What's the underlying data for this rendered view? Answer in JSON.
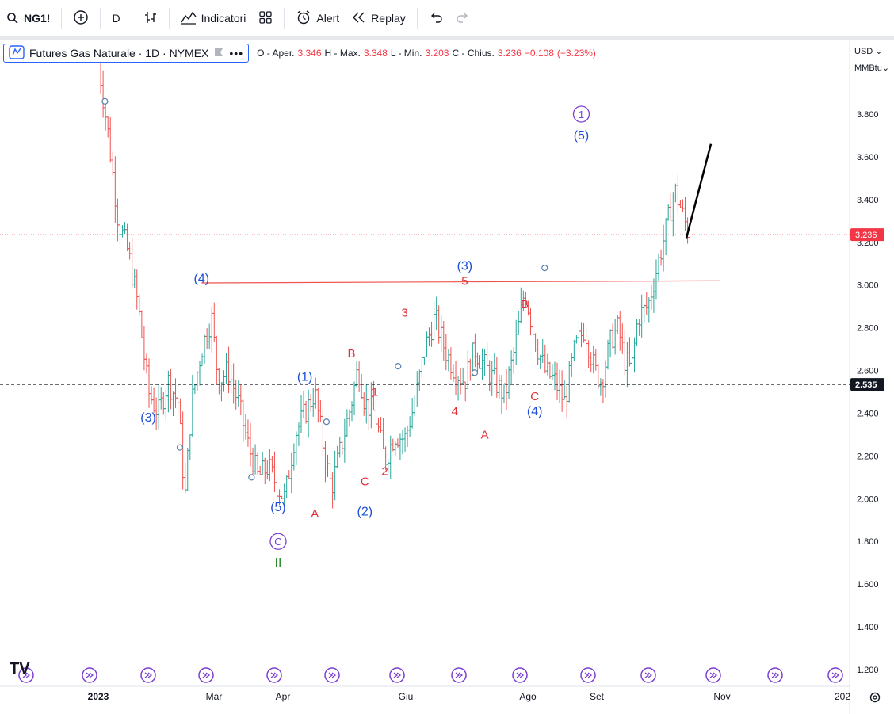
{
  "toolbar": {
    "symbol": "NG1!",
    "interval": "D",
    "indicators_label": "Indicatori",
    "alert_label": "Alert",
    "replay_label": "Replay"
  },
  "legend": {
    "title": "Futures Gas Naturale · 1D · NYMEX",
    "open_label": "O - Aper.",
    "open": "3.346",
    "high_label": "H - Max.",
    "high": "3.348",
    "low_label": "L - Min.",
    "low": "3.203",
    "close_label": "C - Chius.",
    "close": "3.236",
    "change": "−0.108",
    "change_pct": "(−3.23%)"
  },
  "price_axis": {
    "currency": "USD",
    "unit": "MMBtu"
  },
  "colors": {
    "up": "#26a69a",
    "down": "#ef5350",
    "wave_blue": "#1e4fd6",
    "wave_red": "#e0303a",
    "wave_purple": "#7b3fd1",
    "wave_green": "#2e8b2e",
    "hline_red": "#ef5350",
    "current_price_bg": "#f23645"
  },
  "chart_data": {
    "type": "ohlc",
    "ylim": [
      1.15,
      4.0
    ],
    "y_ticks": [
      "3.800",
      "3.600",
      "3.400",
      "3.200",
      "3.000",
      "2.800",
      "2.600",
      "2.400",
      "2.200",
      "2.000",
      "1.800",
      "1.600",
      "1.400",
      "1.200"
    ],
    "x_labels": [
      "2023",
      "Mar",
      "Apr",
      "Giu",
      "Ago",
      "Set",
      "Nov",
      "202"
    ],
    "last_price_label": "3.236",
    "dashed_level_label": "2.535",
    "last_price": 3.236,
    "dashed_level": 2.535,
    "resistance_level": 3.01,
    "path": [
      [
        0,
        4.05
      ],
      [
        6,
        3.7
      ],
      [
        12,
        3.3
      ],
      [
        18,
        3.15
      ],
      [
        24,
        2.9
      ],
      [
        30,
        2.5
      ],
      [
        36,
        2.4
      ],
      [
        42,
        2.55
      ],
      [
        48,
        2.45
      ],
      [
        52,
        2.0
      ],
      [
        56,
        2.45
      ],
      [
        62,
        2.7
      ],
      [
        68,
        2.85
      ],
      [
        72,
        2.55
      ],
      [
        78,
        2.6
      ],
      [
        84,
        2.45
      ],
      [
        90,
        2.25
      ],
      [
        96,
        2.1
      ],
      [
        102,
        2.15
      ],
      [
        108,
        2.05
      ],
      [
        112,
        2.0
      ],
      [
        118,
        2.3
      ],
      [
        124,
        2.4
      ],
      [
        130,
        2.5
      ],
      [
        136,
        2.2
      ],
      [
        140,
        2.05
      ],
      [
        146,
        2.25
      ],
      [
        152,
        2.45
      ],
      [
        156,
        2.62
      ],
      [
        160,
        2.45
      ],
      [
        166,
        2.4
      ],
      [
        172,
        2.18
      ],
      [
        178,
        2.3
      ],
      [
        184,
        2.28
      ],
      [
        190,
        2.45
      ],
      [
        196,
        2.7
      ],
      [
        202,
        2.85
      ],
      [
        208,
        2.7
      ],
      [
        214,
        2.6
      ],
      [
        220,
        2.55
      ],
      [
        226,
        2.7
      ],
      [
        232,
        2.62
      ],
      [
        238,
        2.55
      ],
      [
        244,
        2.48
      ],
      [
        250,
        2.7
      ],
      [
        256,
        2.98
      ],
      [
        262,
        2.75
      ],
      [
        268,
        2.6
      ],
      [
        274,
        2.55
      ],
      [
        280,
        2.45
      ],
      [
        286,
        2.7
      ],
      [
        292,
        2.8
      ],
      [
        298,
        2.6
      ],
      [
        302,
        2.55
      ],
      [
        308,
        2.75
      ],
      [
        312,
        2.8
      ],
      [
        316,
        2.65
      ],
      [
        320,
        2.6
      ],
      [
        324,
        2.85
      ],
      [
        330,
        2.9
      ],
      [
        336,
        3.1
      ],
      [
        342,
        3.3
      ],
      [
        346,
        3.45
      ],
      [
        350,
        3.35
      ],
      [
        354,
        3.25
      ]
    ],
    "annotations": [
      {
        "text": "(4)",
        "color": "blue",
        "date_idx": 62,
        "price": 3.03
      },
      {
        "text": "(3)",
        "color": "blue",
        "date_idx": 30,
        "price": 2.38
      },
      {
        "text": "(5)",
        "color": "blue",
        "date_idx": 108,
        "price": 1.96
      },
      {
        "text": "C",
        "color": "purple_circle",
        "date_idx": 108,
        "price": 1.8
      },
      {
        "text": "II",
        "color": "green",
        "date_idx": 108,
        "price": 1.7
      },
      {
        "text": "(1)",
        "color": "blue",
        "date_idx": 124,
        "price": 2.57
      },
      {
        "text": "A",
        "color": "red",
        "date_idx": 130,
        "price": 1.93
      },
      {
        "text": "B",
        "color": "red",
        "date_idx": 152,
        "price": 2.68
      },
      {
        "text": "C",
        "color": "red",
        "date_idx": 160,
        "price": 2.08
      },
      {
        "text": "(2)",
        "color": "blue",
        "date_idx": 160,
        "price": 1.94
      },
      {
        "text": "1",
        "color": "red",
        "date_idx": 166,
        "price": 2.5
      },
      {
        "text": "2",
        "color": "red",
        "date_idx": 172,
        "price": 2.13
      },
      {
        "text": "3",
        "color": "red",
        "date_idx": 184,
        "price": 2.87
      },
      {
        "text": "4",
        "color": "red",
        "date_idx": 214,
        "price": 2.41
      },
      {
        "text": "5",
        "color": "red",
        "date_idx": 220,
        "price": 3.02
      },
      {
        "text": "(3)",
        "color": "blue",
        "date_idx": 220,
        "price": 3.09
      },
      {
        "text": "A",
        "color": "red",
        "date_idx": 232,
        "price": 2.3
      },
      {
        "text": "B",
        "color": "red",
        "date_idx": 256,
        "price": 2.91
      },
      {
        "text": "C",
        "color": "red",
        "date_idx": 262,
        "price": 2.48
      },
      {
        "text": "(4)",
        "color": "blue",
        "date_idx": 262,
        "price": 2.41
      },
      {
        "text": "(5)",
        "color": "blue",
        "date_idx": 290,
        "price": 3.7
      },
      {
        "text": "1",
        "color": "purple_circle",
        "date_idx": 290,
        "price": 3.8
      }
    ]
  }
}
